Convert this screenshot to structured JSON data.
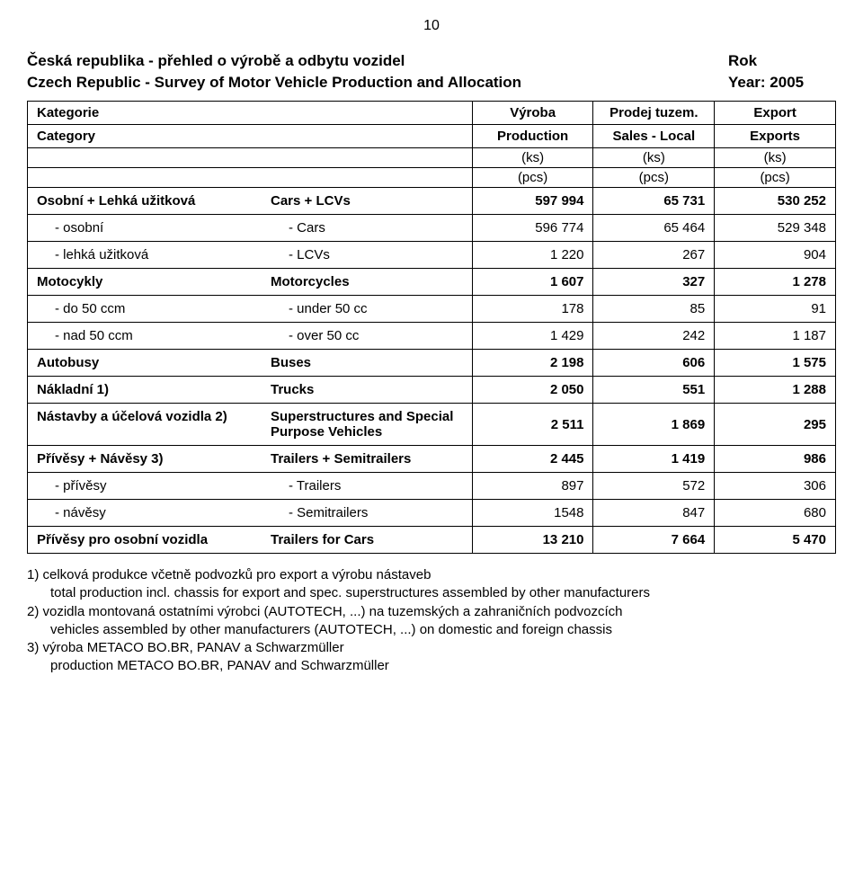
{
  "page_number": "10",
  "header": {
    "title_cz": "Česká republika - přehled o výrobě a odbytu vozidel",
    "title_en": "Czech Republic - Survey of Motor Vehicle Production and Allocation",
    "rok": "Rok",
    "year": "Year: 2005"
  },
  "colhdr": {
    "kategorie": "Kategorie",
    "category": "Category",
    "vyroba": "Výroba",
    "production": "Production",
    "prodej": "Prodej tuzem.",
    "sales": "Sales - Local",
    "export": "Export",
    "exports": "Exports",
    "ks": "(ks)",
    "pcs": "(pcs)"
  },
  "rows": [
    {
      "cz": "Osobní + Lehká užitková",
      "en": "Cars + LCVs",
      "c1": "597 994",
      "c2": "65 731",
      "c3": "530 252",
      "bold": true
    },
    {
      "cz": "- osobní",
      "en": "- Cars",
      "c1": "596 774",
      "c2": "65 464",
      "c3": "529 348",
      "sub": true
    },
    {
      "cz": "- lehká užitková",
      "en": "- LCVs",
      "c1": "1 220",
      "c2": "267",
      "c3": "904",
      "sub": true
    },
    {
      "cz": "Motocykly",
      "en": "Motorcycles",
      "c1": "1 607",
      "c2": "327",
      "c3": "1 278",
      "bold": true
    },
    {
      "cz": "- do 50 ccm",
      "en": "- under 50 cc",
      "c1": "178",
      "c2": "85",
      "c3": "91",
      "sub": true
    },
    {
      "cz": "- nad 50 ccm",
      "en": "- over 50 cc",
      "c1": "1 429",
      "c2": "242",
      "c3": "1 187",
      "sub": true
    },
    {
      "cz": "Autobusy",
      "en": "Buses",
      "c1": "2 198",
      "c2": "606",
      "c3": "1 575",
      "bold": true
    },
    {
      "cz": "Nákladní   1)",
      "en": "Trucks",
      "c1": "2 050",
      "c2": "551",
      "c3": "1 288",
      "bold": true
    },
    {
      "cz": "Nástavby a účelová vozidla   2)",
      "en": "Superstructures and Special Purpose Vehicles",
      "c1": "2 511",
      "c2": "1 869",
      "c3": "295",
      "bold": true
    },
    {
      "cz": "Přívěsy + Návěsy   3)",
      "en": "Trailers + Semitrailers",
      "c1": "2 445",
      "c2": "1 419",
      "c3": "986",
      "bold": true
    },
    {
      "cz": "- přívěsy",
      "en": "- Trailers",
      "c1": "897",
      "c2": "572",
      "c3": "306",
      "sub": true
    },
    {
      "cz": "- návěsy",
      "en": "- Semitrailers",
      "c1": "1548",
      "c2": "847",
      "c3": "680",
      "sub": true
    },
    {
      "cz": "Přívěsy pro osobní vozidla",
      "en": "Trailers for Cars",
      "c1": "13 210",
      "c2": "7 664",
      "c3": "5 470",
      "bold": true
    }
  ],
  "notes": {
    "n1a": "1) celková produkce včetně podvozků pro export a výrobu nástaveb",
    "n1b": "total production incl. chassis for export and spec. superstructures assembled by other manufacturers",
    "n2a": "2) vozidla montovaná ostatními výrobci (AUTOTECH, ...) na tuzemských a zahraničních podvozcích",
    "n2b": "vehicles assembled by other manufacturers (AUTOTECH, ...) on domestic and foreign chassis",
    "n3a": "3) výroba METACO BO.BR, PANAV a Schwarzmüller",
    "n3b": "production METACO BO.BR, PANAV and Schwarzmüller"
  },
  "style": {
    "background_color": "#ffffff",
    "text_color": "#000000",
    "border_color": "#000000",
    "font_family": "Arial",
    "base_fontsize": 15,
    "header_fontsize": 17
  }
}
